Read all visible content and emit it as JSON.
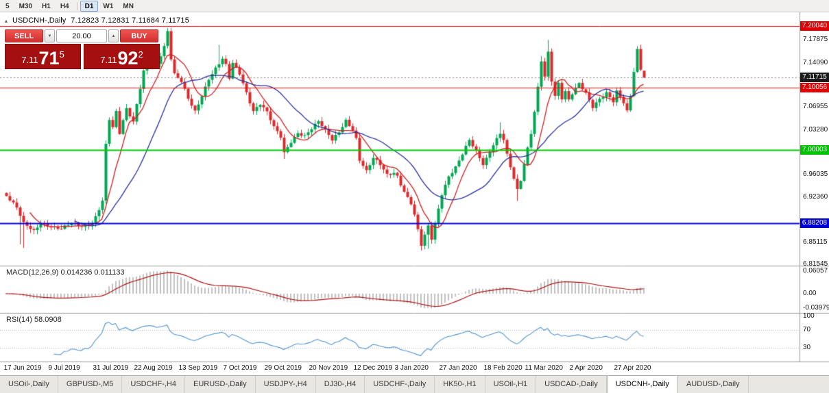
{
  "toolbar": {
    "timeframes": [
      "5",
      "M30",
      "H1",
      "H4",
      "D1",
      "W1",
      "MN"
    ],
    "active": "D1",
    "separator_after": "H4"
  },
  "icons": {
    "chart": "▴",
    "spin_down": "▼",
    "spin_up": "▲"
  },
  "chart": {
    "title": "USDCNH-,Daily",
    "ohlc_text": "7.12823 7.12831 7.11684 7.11715"
  },
  "trade_panel": {
    "sell_label": "SELL",
    "buy_label": "BUY",
    "volume": "20.00",
    "sell_price": {
      "prefix": "7.11",
      "big": "71",
      "sup": "5"
    },
    "buy_price": {
      "prefix": "7.11",
      "big": "92",
      "sup": "2"
    }
  },
  "price_axis": {
    "ticks": [
      "7.17875",
      "7.14090",
      "7.06955",
      "7.03280",
      "6.96035",
      "6.92360",
      "6.85115",
      "6.81545"
    ],
    "badges": [
      {
        "label": "7.20040",
        "bg": "#e30000"
      },
      {
        "label": "7.11715",
        "bg": "#1a1a1a"
      },
      {
        "label": "7.10056",
        "bg": "#e30000"
      },
      {
        "label": "7.00003",
        "bg": "#00c400"
      },
      {
        "label": "6.88208",
        "bg": "#0000dd"
      }
    ]
  },
  "indicators": {
    "macd": {
      "label": "MACD(12,26,9) 0.014236 0.011133",
      "fast": 12,
      "slow": 26,
      "signal": 9,
      "axis": [
        "0.06057",
        "0.00",
        "-0.03979"
      ],
      "axis_values": [
        0.06057,
        0,
        -0.03979
      ],
      "range": [
        -0.05,
        0.07
      ],
      "histogram_color": "#c0c0c0",
      "signal_color": "#aa1111"
    },
    "rsi": {
      "label": "RSI(14) 58.0908",
      "period": 14,
      "value": 58.0908,
      "axis": [
        "100",
        "70",
        "30"
      ],
      "axis_values": [
        100,
        70,
        30
      ],
      "levels": [
        70,
        30
      ],
      "range": [
        0,
        105
      ],
      "line_color": "#4f93ce"
    }
  },
  "time_axis": [
    {
      "label": "17 Jun 2019",
      "i": 0
    },
    {
      "label": "9 Jul 2019",
      "i": 13
    },
    {
      "label": "31 Jul 2019",
      "i": 26
    },
    {
      "label": "22 Aug 2019",
      "i": 38
    },
    {
      "label": "13 Sep 2019",
      "i": 51
    },
    {
      "label": "7 Oct 2019",
      "i": 64
    },
    {
      "label": "29 Oct 2019",
      "i": 76
    },
    {
      "label": "20 Nov 2019",
      "i": 89
    },
    {
      "label": "12 Dec 2019",
      "i": 102
    },
    {
      "label": "3 Jan 2020",
      "i": 114
    },
    {
      "label": "27 Jan 2020",
      "i": 127
    },
    {
      "label": "18 Feb 2020",
      "i": 140
    },
    {
      "label": "11 Mar 2020",
      "i": 152
    },
    {
      "label": "2 Apr 2020",
      "i": 165
    },
    {
      "label": "27 Apr 2020",
      "i": 178
    }
  ],
  "tabs": [
    {
      "label": "USOil-,Daily"
    },
    {
      "label": "GBPUSD-,M5"
    },
    {
      "label": "USDCHF-,H4"
    },
    {
      "label": "EURUSD-,Daily"
    },
    {
      "label": "USDJPY-,H4"
    },
    {
      "label": "DJ30-,H4"
    },
    {
      "label": "USDCHF-,Daily"
    },
    {
      "label": "HK50-,H1"
    },
    {
      "label": "USOil-,H1"
    },
    {
      "label": "USDCAD-,Daily"
    },
    {
      "label": "USDCNH-,Daily",
      "active": true
    },
    {
      "label": "AUDUSD-,Daily"
    }
  ],
  "chart_data": {
    "type": "candlestick",
    "symbol": "USDCNH-",
    "timeframe": "Daily",
    "visible_ohlc": {
      "open": 7.12823,
      "high": 7.12831,
      "low": 7.11684,
      "close": 7.11715
    },
    "bid": 7.11715,
    "ask": 7.11922,
    "y_range": [
      6.8136,
      7.2181
    ],
    "candle_count": 187,
    "colors": {
      "up": "#00a651",
      "down": "#dc2a2c",
      "ma_fast": "#cf2020",
      "ma_slow": "#26309e"
    },
    "ma_periods": [
      8,
      21
    ],
    "noise": 0.0028,
    "wick": 0.006,
    "close_path": [
      [
        0,
        6.926
      ],
      [
        3,
        6.905
      ],
      [
        5,
        6.88
      ],
      [
        8,
        6.87
      ],
      [
        10,
        6.885
      ],
      [
        13,
        6.878
      ],
      [
        16,
        6.872
      ],
      [
        19,
        6.88
      ],
      [
        22,
        6.876
      ],
      [
        25,
        6.885
      ],
      [
        26,
        6.895
      ],
      [
        28,
        6.92
      ],
      [
        29,
        7.01
      ],
      [
        30,
        7.05
      ],
      [
        31,
        7.035
      ],
      [
        32,
        7.06
      ],
      [
        33,
        7.025
      ],
      [
        35,
        7.065
      ],
      [
        37,
        7.045
      ],
      [
        38,
        7.075
      ],
      [
        40,
        7.13
      ],
      [
        42,
        7.155
      ],
      [
        44,
        7.14
      ],
      [
        46,
        7.165
      ],
      [
        47,
        7.19
      ],
      [
        48,
        7.145
      ],
      [
        49,
        7.12
      ],
      [
        51,
        7.11
      ],
      [
        53,
        7.085
      ],
      [
        55,
        7.065
      ],
      [
        57,
        7.09
      ],
      [
        59,
        7.115
      ],
      [
        61,
        7.13
      ],
      [
        63,
        7.145
      ],
      [
        64,
        7.135
      ],
      [
        65,
        7.115
      ],
      [
        66,
        7.14
      ],
      [
        68,
        7.125
      ],
      [
        70,
        7.095
      ],
      [
        72,
        7.065
      ],
      [
        74,
        7.075
      ],
      [
        76,
        7.06
      ],
      [
        78,
        7.035
      ],
      [
        80,
        7.02
      ],
      [
        81,
        6.995
      ],
      [
        83,
        7.015
      ],
      [
        85,
        7.03
      ],
      [
        87,
        7.025
      ],
      [
        89,
        7.035
      ],
      [
        91,
        7.045
      ],
      [
        93,
        7.03
      ],
      [
        95,
        7.015
      ],
      [
        97,
        7.03
      ],
      [
        99,
        7.05
      ],
      [
        101,
        7.035
      ],
      [
        102,
        7.02
      ],
      [
        103,
        6.985
      ],
      [
        105,
        6.965
      ],
      [
        107,
        6.985
      ],
      [
        109,
        6.975
      ],
      [
        111,
        6.96
      ],
      [
        113,
        6.965
      ],
      [
        114,
        6.96
      ],
      [
        116,
        6.935
      ],
      [
        118,
        6.915
      ],
      [
        119,
        6.895
      ],
      [
        120,
        6.87
      ],
      [
        121,
        6.845
      ],
      [
        122,
        6.86
      ],
      [
        123,
        6.875
      ],
      [
        124,
        6.855
      ],
      [
        125,
        6.88
      ],
      [
        126,
        6.905
      ],
      [
        127,
        6.93
      ],
      [
        129,
        6.96
      ],
      [
        131,
        6.975
      ],
      [
        133,
        6.995
      ],
      [
        135,
        7.015
      ],
      [
        137,
        6.995
      ],
      [
        139,
        6.975
      ],
      [
        140,
        6.985
      ],
      [
        142,
        7.01
      ],
      [
        144,
        7.03
      ],
      [
        145,
        7.02
      ],
      [
        146,
        6.995
      ],
      [
        147,
        6.975
      ],
      [
        148,
        6.955
      ],
      [
        149,
        6.935
      ],
      [
        150,
        6.95
      ],
      [
        151,
        6.975
      ],
      [
        152,
        7.0
      ],
      [
        153,
        7.025
      ],
      [
        154,
        7.06
      ],
      [
        155,
        7.1
      ],
      [
        156,
        7.145
      ],
      [
        157,
        7.12
      ],
      [
        158,
        7.16
      ],
      [
        159,
        7.115
      ],
      [
        160,
        7.09
      ],
      [
        161,
        7.11
      ],
      [
        162,
        7.085
      ],
      [
        163,
        7.095
      ],
      [
        164,
        7.08
      ],
      [
        165,
        7.09
      ],
      [
        167,
        7.105
      ],
      [
        169,
        7.09
      ],
      [
        171,
        7.07
      ],
      [
        173,
        7.085
      ],
      [
        175,
        7.095
      ],
      [
        177,
        7.08
      ],
      [
        178,
        7.095
      ],
      [
        180,
        7.075
      ],
      [
        181,
        7.06
      ],
      [
        182,
        7.085
      ],
      [
        183,
        7.125
      ],
      [
        184,
        7.16
      ],
      [
        185,
        7.13
      ],
      [
        186,
        7.117
      ]
    ],
    "wick_extremes": [
      [
        4,
        0,
        6.848
      ],
      [
        5,
        0,
        6.842
      ],
      [
        47,
        7.196,
        0
      ],
      [
        62,
        7.17,
        0
      ],
      [
        81,
        0,
        6.986
      ],
      [
        121,
        0,
        6.838
      ],
      [
        123,
        0,
        6.841
      ],
      [
        144,
        7.045,
        0
      ],
      [
        149,
        0,
        6.918
      ],
      [
        156,
        7.152,
        0
      ],
      [
        158,
        7.178,
        0
      ],
      [
        184,
        7.168,
        0
      ]
    ],
    "last_candle": [
      7.12823,
      7.12831,
      7.11684,
      7.11715
    ],
    "h_lines": [
      {
        "value": 7.2004,
        "color": "#e30000",
        "width": 1
      },
      {
        "value": 7.10056,
        "color": "#e30000",
        "width": 1
      },
      {
        "value": 7.00003,
        "color": "#00ce00",
        "width": 2
      },
      {
        "value": 6.88208,
        "color": "#0000dd",
        "width": 2
      }
    ]
  }
}
